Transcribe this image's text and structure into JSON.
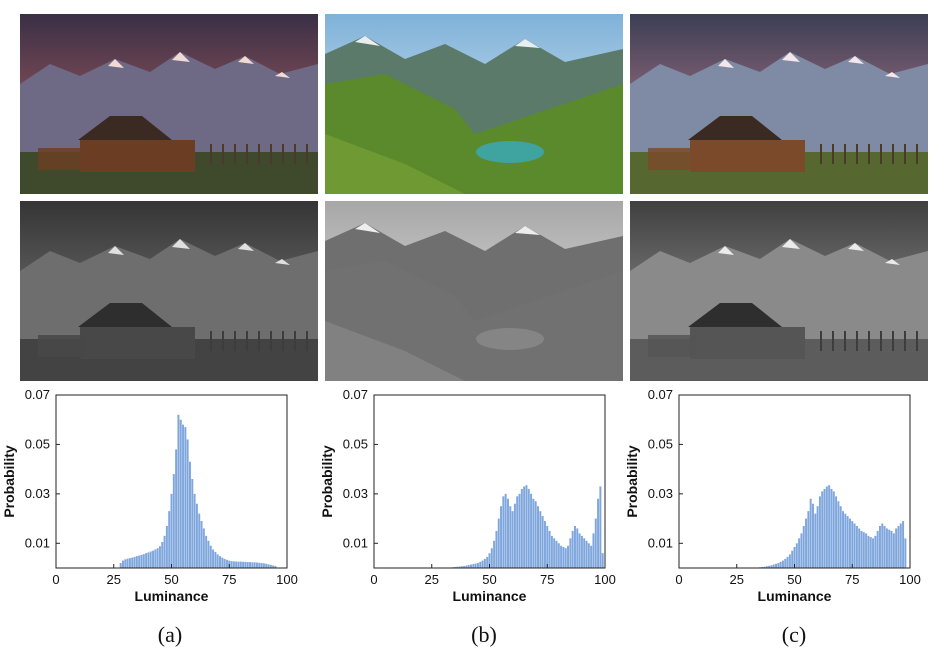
{
  "figure": {
    "panels": [
      {
        "caption": "(a)",
        "color_image": "mountain-barn-sunset-photo",
        "gray_image": "mountain-barn-grayscale-photo",
        "palette": {
          "sky_top": "#3a2f45",
          "sky_glow": "#c56a6a",
          "mountain": "#6e6a85",
          "snow": "#f1d9d4",
          "ground": "#3f4a2c",
          "barn": "#6b3e24"
        }
      },
      {
        "caption": "(b)",
        "color_image": "alpine-valley-lake-photo",
        "gray_image": "alpine-valley-grayscale-photo",
        "palette": {
          "sky_top": "#7fb2d9",
          "sky_glow": "#e6eef5",
          "mountain": "#5b7a6a",
          "snow": "#e9eef0",
          "ground": "#5a8a2c",
          "lake": "#3fa3a0"
        }
      },
      {
        "caption": "(c)",
        "color_image": "mountain-barn-enhanced-photo",
        "gray_image": "mountain-barn-enhanced-grayscale-photo",
        "palette": {
          "sky_top": "#3b3e55",
          "sky_glow": "#d68a96",
          "mountain": "#7f8aa5",
          "snow": "#f4e6ea",
          "ground": "#56682f",
          "barn": "#7a4a2a"
        }
      }
    ]
  },
  "chart_data": [
    {
      "type": "bar",
      "xlabel": "Luminance",
      "ylabel": "Probability",
      "xlim": [
        0,
        100
      ],
      "ylim": [
        0,
        0.07
      ],
      "xticks": [
        "0",
        "25",
        "50",
        "75",
        "100"
      ],
      "yticks": [
        "0.01",
        "0.03",
        "0.05",
        "0.07"
      ],
      "bar_color": "#7fa6dd",
      "x": [
        28,
        29,
        30,
        31,
        32,
        33,
        34,
        35,
        36,
        37,
        38,
        39,
        40,
        41,
        42,
        43,
        44,
        45,
        46,
        47,
        48,
        49,
        50,
        51,
        52,
        53,
        54,
        55,
        56,
        57,
        58,
        59,
        60,
        61,
        62,
        63,
        64,
        65,
        66,
        67,
        68,
        69,
        70,
        71,
        72,
        73,
        74,
        75,
        76,
        77,
        78,
        79,
        80,
        81,
        82,
        83,
        84,
        85,
        86,
        87,
        88,
        89,
        90,
        91,
        92,
        93,
        94,
        95
      ],
      "values": [
        0.002,
        0.003,
        0.0035,
        0.0038,
        0.004,
        0.0042,
        0.0045,
        0.0048,
        0.005,
        0.0053,
        0.0056,
        0.006,
        0.0063,
        0.0067,
        0.007,
        0.0075,
        0.008,
        0.0088,
        0.0105,
        0.013,
        0.017,
        0.023,
        0.03,
        0.038,
        0.048,
        0.062,
        0.06,
        0.058,
        0.057,
        0.052,
        0.043,
        0.036,
        0.03,
        0.026,
        0.022,
        0.019,
        0.016,
        0.013,
        0.011,
        0.009,
        0.0075,
        0.0065,
        0.0055,
        0.0048,
        0.0042,
        0.0037,
        0.0033,
        0.003,
        0.0028,
        0.0027,
        0.0026,
        0.0026,
        0.0026,
        0.0025,
        0.0025,
        0.0024,
        0.0024,
        0.0023,
        0.0023,
        0.0022,
        0.0021,
        0.002,
        0.0019,
        0.0017,
        0.0015,
        0.0013,
        0.001,
        0.0008
      ]
    },
    {
      "type": "bar",
      "xlabel": "Luminance",
      "ylabel": "Probability",
      "xlim": [
        0,
        100
      ],
      "ylim": [
        0,
        0.07
      ],
      "xticks": [
        "0",
        "25",
        "50",
        "75",
        "100"
      ],
      "yticks": [
        "0.01",
        "0.03",
        "0.05",
        "0.07"
      ],
      "bar_color": "#7fa6dd",
      "x": [
        33,
        34,
        35,
        36,
        37,
        38,
        39,
        40,
        41,
        42,
        43,
        44,
        45,
        46,
        47,
        48,
        49,
        50,
        51,
        52,
        53,
        54,
        55,
        56,
        57,
        58,
        59,
        60,
        61,
        62,
        63,
        64,
        65,
        66,
        67,
        68,
        69,
        70,
        71,
        72,
        73,
        74,
        75,
        76,
        77,
        78,
        79,
        80,
        81,
        82,
        83,
        84,
        85,
        86,
        87,
        88,
        89,
        90,
        91,
        92,
        93,
        94,
        95,
        96,
        97,
        98,
        99
      ],
      "values": [
        0.0002,
        0.0003,
        0.0004,
        0.0005,
        0.0006,
        0.0007,
        0.0008,
        0.001,
        0.0012,
        0.0014,
        0.0016,
        0.0018,
        0.002,
        0.0025,
        0.003,
        0.0037,
        0.0045,
        0.006,
        0.008,
        0.011,
        0.015,
        0.02,
        0.025,
        0.029,
        0.03,
        0.028,
        0.025,
        0.023,
        0.026,
        0.029,
        0.03,
        0.032,
        0.033,
        0.0335,
        0.032,
        0.03,
        0.028,
        0.027,
        0.025,
        0.023,
        0.021,
        0.019,
        0.017,
        0.015,
        0.013,
        0.012,
        0.011,
        0.01,
        0.009,
        0.0085,
        0.008,
        0.009,
        0.012,
        0.015,
        0.017,
        0.016,
        0.014,
        0.013,
        0.012,
        0.011,
        0.01,
        0.009,
        0.014,
        0.02,
        0.028,
        0.033,
        0.006
      ]
    },
    {
      "type": "bar",
      "xlabel": "Luminance",
      "ylabel": "Probability",
      "xlim": [
        0,
        100
      ],
      "ylim": [
        0,
        0.07
      ],
      "xticks": [
        "0",
        "25",
        "50",
        "75",
        "100"
      ],
      "yticks": [
        "0.01",
        "0.03",
        "0.05",
        "0.07"
      ],
      "bar_color": "#7fa6dd",
      "x": [
        35,
        36,
        37,
        38,
        39,
        40,
        41,
        42,
        43,
        44,
        45,
        46,
        47,
        48,
        49,
        50,
        51,
        52,
        53,
        54,
        55,
        56,
        57,
        58,
        59,
        60,
        61,
        62,
        63,
        64,
        65,
        66,
        67,
        68,
        69,
        70,
        71,
        72,
        73,
        74,
        75,
        76,
        77,
        78,
        79,
        80,
        81,
        82,
        83,
        84,
        85,
        86,
        87,
        88,
        89,
        90,
        91,
        92,
        93,
        94,
        95,
        96,
        97,
        98
      ],
      "values": [
        0.0003,
        0.0004,
        0.0005,
        0.0007,
        0.0009,
        0.0011,
        0.0014,
        0.0017,
        0.002,
        0.0025,
        0.003,
        0.0037,
        0.0045,
        0.0055,
        0.007,
        0.0085,
        0.01,
        0.012,
        0.014,
        0.017,
        0.02,
        0.023,
        0.028,
        0.026,
        0.022,
        0.025,
        0.029,
        0.031,
        0.032,
        0.033,
        0.0335,
        0.032,
        0.031,
        0.029,
        0.027,
        0.025,
        0.023,
        0.022,
        0.021,
        0.02,
        0.019,
        0.018,
        0.017,
        0.016,
        0.015,
        0.0145,
        0.014,
        0.013,
        0.0125,
        0.012,
        0.013,
        0.015,
        0.017,
        0.018,
        0.017,
        0.016,
        0.0155,
        0.015,
        0.014,
        0.016,
        0.017,
        0.018,
        0.019,
        0.012
      ]
    }
  ]
}
